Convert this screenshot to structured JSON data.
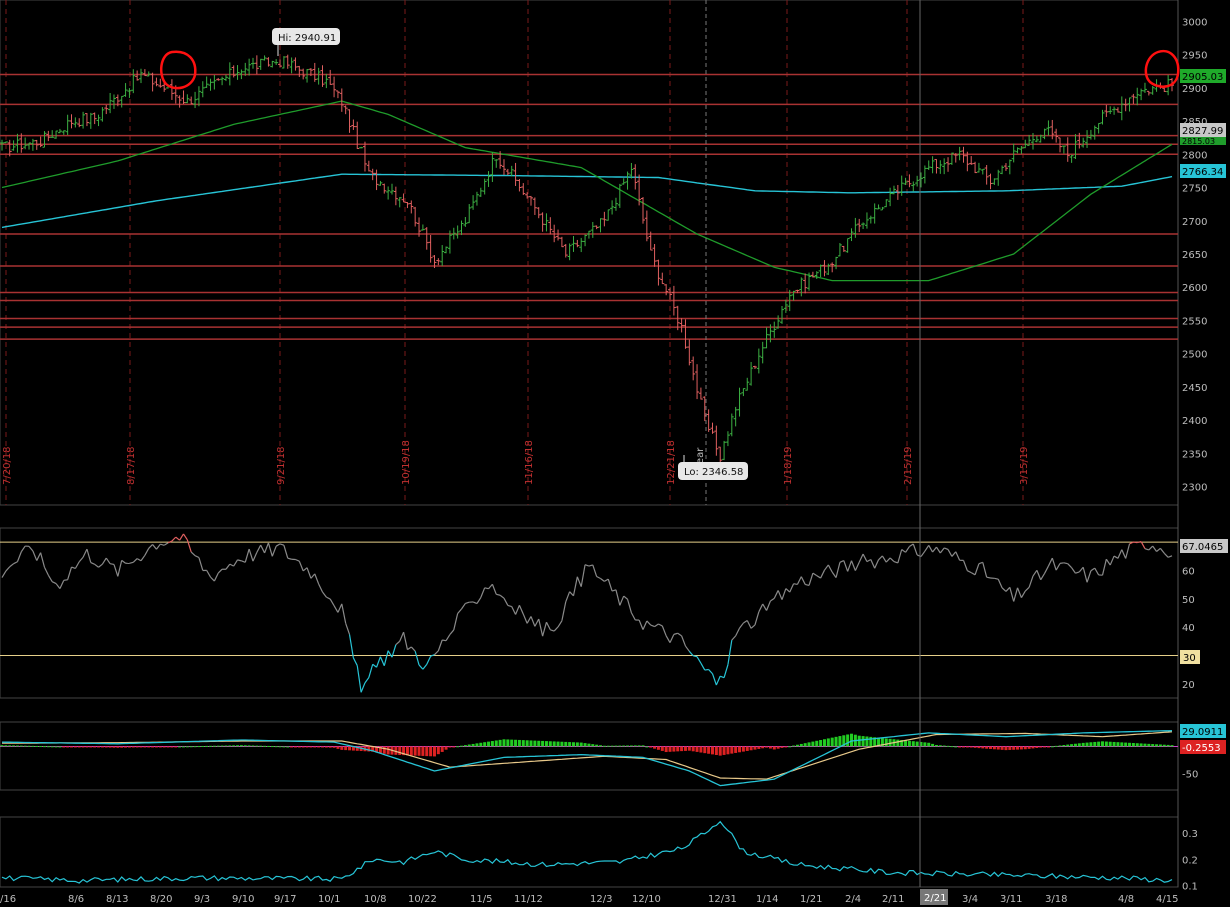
{
  "colors": {
    "background": "#000000",
    "up_bar": "#3cb043",
    "down_bar": "#e06060",
    "ma_fast": "#1f9c2b",
    "ma_slow": "#27c4d6",
    "support_line": "#a83232",
    "rsi_line": "#8a8a8a",
    "rsi_extreme": "#27c4d6",
    "rsi_bands": "#e6d08a",
    "macd_line": "#27c4d6",
    "macd_signal": "#e8c98a",
    "hist_up": "#22cc22",
    "hist_down": "#dd2222",
    "zero_line": "#cc44cc",
    "vol_line": "#27c4d6",
    "annotation_circle": "#ff1010"
  },
  "callouts": {
    "high": "Hi: 2940.91",
    "low": "Lo: 2346.58"
  },
  "year_marker": "year",
  "price_tags": {
    "last": "2905.03",
    "level": "2827.99",
    "ma_fast": "2815.03",
    "ma_slow": "2766.34"
  },
  "rsi_tags": {
    "value": "67.0465",
    "band": "30"
  },
  "macd_tags": {
    "macd": "29.0911",
    "hist": "-0.2553"
  },
  "crosshair_date": "2/21",
  "x_axis_labels": [
    "/16",
    "8/6",
    "8/13",
    "8/20",
    "9/3",
    "9/10",
    "9/17",
    "10/1",
    "10/8",
    "10/22",
    "11/5",
    "11/12",
    "12/3",
    "12/10",
    "12/31",
    "1/14",
    "1/21",
    "2/4",
    "2/11",
    "3/4",
    "3/11",
    "3/18",
    "4/8",
    "4/15"
  ],
  "vertical_date_labels": [
    "7/20/18",
    "8/17/18",
    "9/21/18",
    "10/19/18",
    "11/16/18",
    "12/21/18",
    "1/18/19",
    "2/15/19",
    "3/15/19"
  ],
  "chart_data": [
    {
      "type": "ohlc",
      "panel": "price",
      "y_ticks": [
        "3000",
        "2950",
        "2900",
        "2850",
        "2800",
        "2750",
        "2700",
        "2650",
        "2600",
        "2550",
        "2500",
        "2450",
        "2400",
        "2350",
        "2300"
      ],
      "ylim": [
        2280,
        3020
      ],
      "support_levels": [
        2920,
        2875,
        2827.99,
        2815,
        2800,
        2680,
        2632,
        2592,
        2580,
        2553,
        2540,
        2522
      ],
      "anchors": [
        [
          0,
          2810
        ],
        [
          10,
          2820
        ],
        [
          18,
          2850
        ],
        [
          24,
          2855
        ],
        [
          36,
          2920
        ],
        [
          48,
          2880
        ],
        [
          62,
          2930
        ],
        [
          72,
          2940.91
        ],
        [
          84,
          2910
        ],
        [
          88,
          2880
        ],
        [
          95,
          2770
        ],
        [
          105,
          2730
        ],
        [
          112,
          2640
        ],
        [
          120,
          2700
        ],
        [
          128,
          2800
        ],
        [
          138,
          2720
        ],
        [
          146,
          2650
        ],
        [
          156,
          2700
        ],
        [
          163,
          2780
        ],
        [
          168,
          2650
        ],
        [
          176,
          2540
        ],
        [
          182,
          2400
        ],
        [
          186,
          2346.58
        ],
        [
          190,
          2420
        ],
        [
          196,
          2500
        ],
        [
          204,
          2590
        ],
        [
          215,
          2640
        ],
        [
          223,
          2700
        ],
        [
          232,
          2745
        ],
        [
          240,
          2780
        ],
        [
          248,
          2800
        ],
        [
          256,
          2760
        ],
        [
          262,
          2800
        ],
        [
          270,
          2840
        ],
        [
          276,
          2800
        ],
        [
          284,
          2850
        ],
        [
          294,
          2895
        ],
        [
          303,
          2905.03
        ]
      ],
      "ma_fast_points": [
        [
          0,
          2750
        ],
        [
          30,
          2790
        ],
        [
          60,
          2845
        ],
        [
          88,
          2880
        ],
        [
          100,
          2860
        ],
        [
          120,
          2810
        ],
        [
          150,
          2780
        ],
        [
          180,
          2680
        ],
        [
          200,
          2630
        ],
        [
          215,
          2610
        ],
        [
          240,
          2610
        ],
        [
          262,
          2650
        ],
        [
          282,
          2740
        ],
        [
          303,
          2815.03
        ]
      ],
      "ma_slow_points": [
        [
          0,
          2690
        ],
        [
          40,
          2730
        ],
        [
          88,
          2770
        ],
        [
          130,
          2768
        ],
        [
          170,
          2765
        ],
        [
          195,
          2745
        ],
        [
          220,
          2742
        ],
        [
          260,
          2745
        ],
        [
          290,
          2752
        ],
        [
          303,
          2766.34
        ]
      ]
    },
    {
      "type": "line",
      "panel": "rsi",
      "y_ticks": [
        "70",
        "60",
        "50",
        "40",
        "30",
        "20"
      ],
      "ylim": [
        15,
        75
      ],
      "bands": [
        70,
        30
      ],
      "anchors": [
        [
          0,
          60
        ],
        [
          8,
          68
        ],
        [
          14,
          55
        ],
        [
          22,
          66
        ],
        [
          30,
          60
        ],
        [
          40,
          70
        ],
        [
          46,
          72
        ],
        [
          54,
          58
        ],
        [
          62,
          65
        ],
        [
          72,
          68
        ],
        [
          80,
          60
        ],
        [
          88,
          46
        ],
        [
          93,
          18
        ],
        [
          98,
          28
        ],
        [
          104,
          36
        ],
        [
          110,
          26
        ],
        [
          118,
          42
        ],
        [
          126,
          56
        ],
        [
          134,
          45
        ],
        [
          142,
          38
        ],
        [
          152,
          62
        ],
        [
          160,
          50
        ],
        [
          166,
          42
        ],
        [
          176,
          35
        ],
        [
          182,
          25
        ],
        [
          186,
          20
        ],
        [
          190,
          38
        ],
        [
          196,
          44
        ],
        [
          206,
          56
        ],
        [
          220,
          62
        ],
        [
          230,
          65
        ],
        [
          242,
          68
        ],
        [
          254,
          60
        ],
        [
          262,
          50
        ],
        [
          272,
          62
        ],
        [
          282,
          58
        ],
        [
          290,
          66
        ],
        [
          297,
          70
        ],
        [
          303,
          67.0465
        ]
      ]
    },
    {
      "type": "macd",
      "panel": "macd",
      "y_ticks": [
        "-50"
      ],
      "ylim": [
        -80,
        45
      ],
      "macd_anchors": [
        [
          0,
          8
        ],
        [
          30,
          5
        ],
        [
          62,
          12
        ],
        [
          86,
          8
        ],
        [
          96,
          -8
        ],
        [
          112,
          -45
        ],
        [
          130,
          -20
        ],
        [
          150,
          -15
        ],
        [
          166,
          -20
        ],
        [
          178,
          -45
        ],
        [
          186,
          -72
        ],
        [
          200,
          -60
        ],
        [
          220,
          10
        ],
        [
          240,
          25
        ],
        [
          260,
          18
        ],
        [
          280,
          25
        ],
        [
          303,
          29.0911
        ]
      ],
      "signal_anchors": [
        [
          0,
          6
        ],
        [
          30,
          7
        ],
        [
          62,
          10
        ],
        [
          88,
          10
        ],
        [
          100,
          -5
        ],
        [
          116,
          -38
        ],
        [
          136,
          -28
        ],
        [
          156,
          -18
        ],
        [
          172,
          -24
        ],
        [
          186,
          -58
        ],
        [
          198,
          -60
        ],
        [
          222,
          -5
        ],
        [
          242,
          22
        ],
        [
          265,
          24
        ],
        [
          285,
          18
        ],
        [
          303,
          27
        ]
      ],
      "hist_last": -0.2553
    },
    {
      "type": "line",
      "panel": "volatility",
      "y_ticks": [
        "0.3",
        "0.2",
        "0.1"
      ],
      "ylim": [
        0.095,
        0.36
      ],
      "anchors": [
        [
          0,
          0.13
        ],
        [
          20,
          0.12
        ],
        [
          50,
          0.13
        ],
        [
          88,
          0.125
        ],
        [
          96,
          0.2
        ],
        [
          104,
          0.19
        ],
        [
          112,
          0.23
        ],
        [
          120,
          0.2
        ],
        [
          140,
          0.18
        ],
        [
          160,
          0.19
        ],
        [
          176,
          0.24
        ],
        [
          182,
          0.3
        ],
        [
          186,
          0.35
        ],
        [
          192,
          0.23
        ],
        [
          206,
          0.18
        ],
        [
          230,
          0.15
        ],
        [
          260,
          0.14
        ],
        [
          290,
          0.13
        ],
        [
          303,
          0.12
        ]
      ]
    }
  ]
}
